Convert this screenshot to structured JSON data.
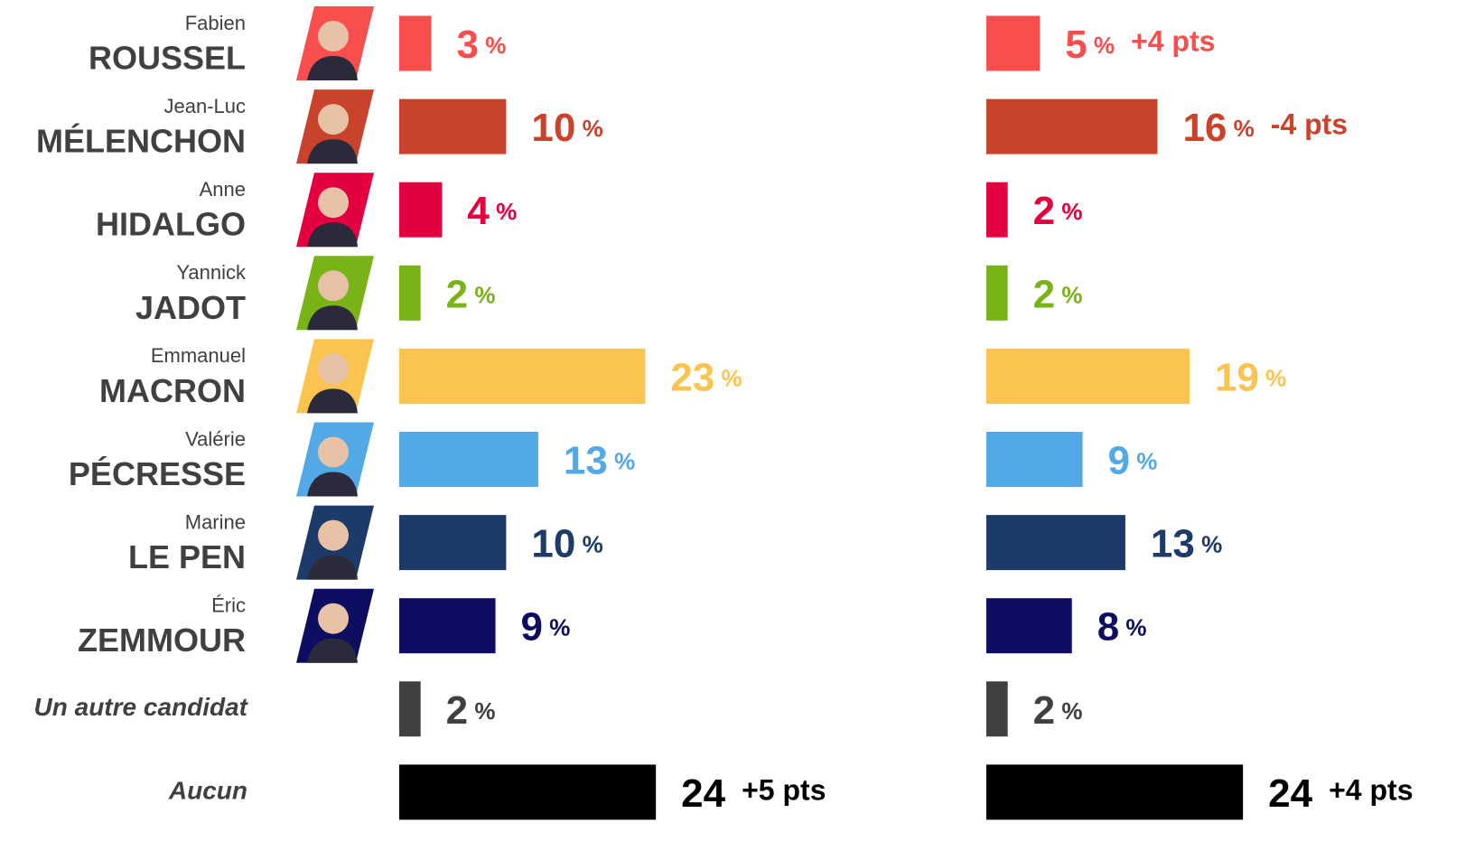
{
  "chart_data": {
    "type": "bar",
    "orientation": "horizontal",
    "categories": [
      "ROUSSEL",
      "MÉLENCHON",
      "HIDALGO",
      "JADOT",
      "MACRON",
      "PÉCRESSE",
      "LE PEN",
      "ZEMMOUR",
      "Un autre candidat",
      "Aucun"
    ],
    "first_names": [
      "Fabien",
      "Jean-Luc",
      "Anne",
      "Yannick",
      "Emmanuel",
      "Valérie",
      "Marine",
      "Éric",
      null,
      null
    ],
    "colors": [
      "#f94e4e",
      "#c9432c",
      "#e4003f",
      "#7ab317",
      "#fbc34f",
      "#52a9e5",
      "#1c3b68",
      "#0d0d62",
      "#404040",
      "#000000"
    ],
    "xlim": [
      0,
      50
    ],
    "series": [
      {
        "values": [
          3,
          10,
          4,
          2,
          23,
          13,
          10,
          9,
          2,
          24
        ],
        "value_labels": [
          "3 %",
          "10 %",
          "4 %",
          "2 %",
          "23 %",
          "13 %",
          "10 %",
          "9 %",
          "2 %",
          "24"
        ],
        "changes": [
          null,
          null,
          null,
          null,
          null,
          null,
          null,
          null,
          null,
          "+5 pts"
        ]
      },
      {
        "values": [
          5,
          16,
          2,
          2,
          19,
          9,
          13,
          8,
          2,
          24
        ],
        "value_labels": [
          "5 %",
          "16 %",
          "2 %",
          "2 %",
          "19 %",
          "9 %",
          "13 %",
          "8 %",
          "2 %",
          "24"
        ],
        "changes": [
          "+4 pts",
          "-4 pts",
          null,
          null,
          null,
          null,
          null,
          null,
          null,
          "+4 pts"
        ]
      }
    ]
  }
}
